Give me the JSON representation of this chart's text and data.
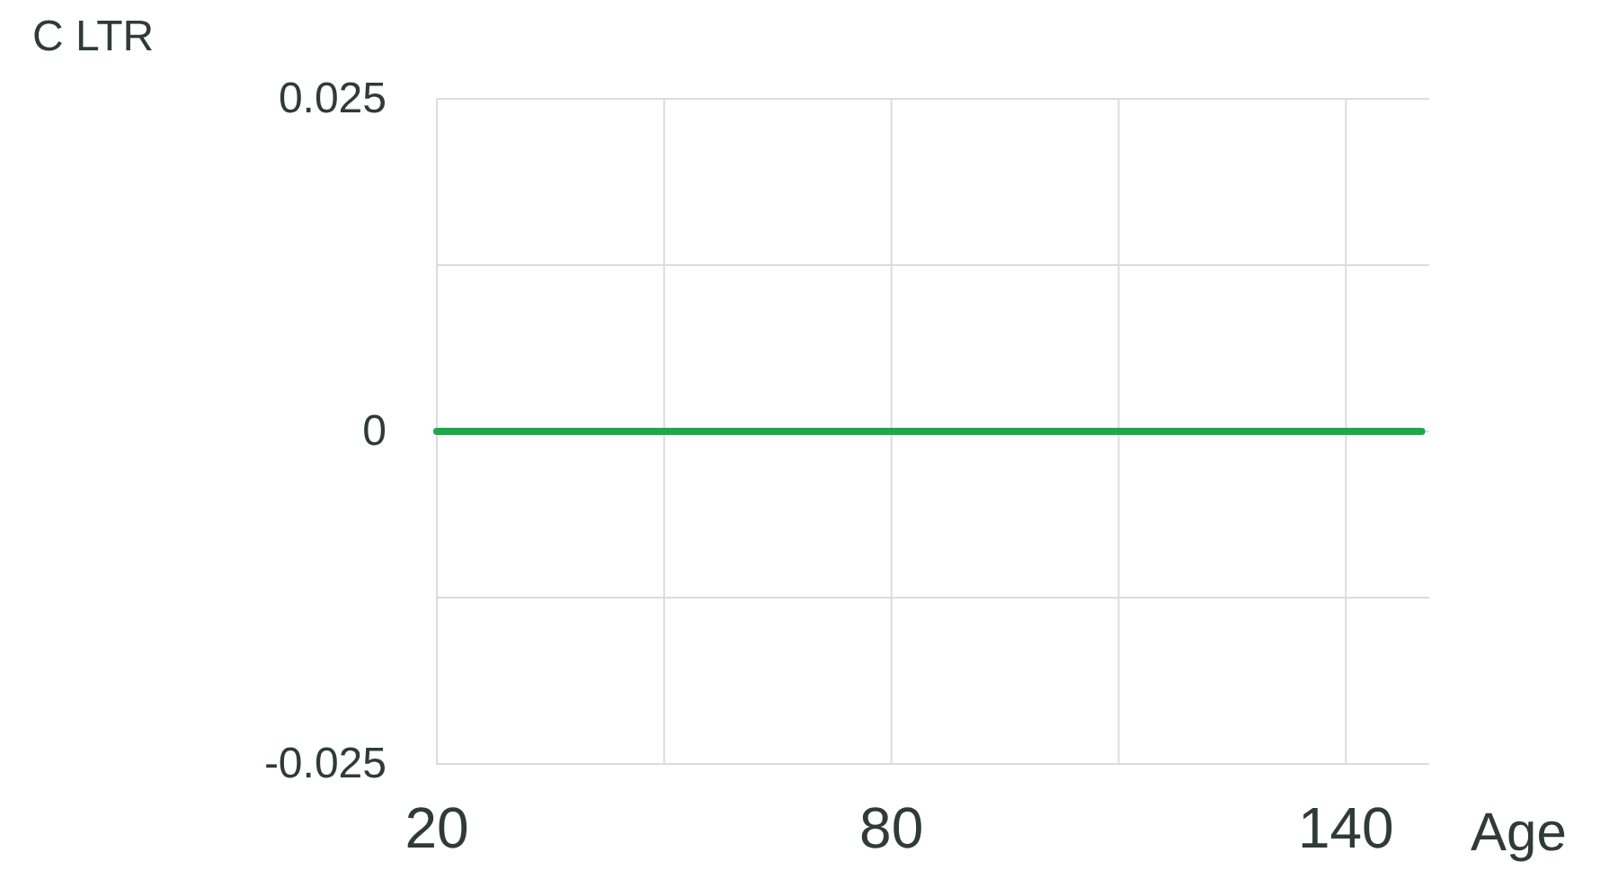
{
  "chart_data": {
    "type": "line",
    "xlabel": "Age",
    "ylabel": "C LTR",
    "x": [
      20,
      150
    ],
    "series": [
      {
        "color": "#1aaa4a",
        "values": [
          0,
          0
        ]
      }
    ],
    "xlim": [
      20,
      151
    ],
    "xticks": [
      20,
      {
        "value": 50,
        "label": null
      },
      80,
      {
        "value": 110,
        "label": null
      },
      140
    ],
    "ylim": [
      -0.025,
      0.025
    ],
    "yticks": [
      {
        "value": -0.025,
        "label": "-0.025"
      },
      {
        "value": -0.0125,
        "label": null
      },
      0,
      {
        "value": 0.0125,
        "label": null
      },
      0.025
    ],
    "grid": true,
    "marker": "none",
    "line_style": "solid"
  }
}
